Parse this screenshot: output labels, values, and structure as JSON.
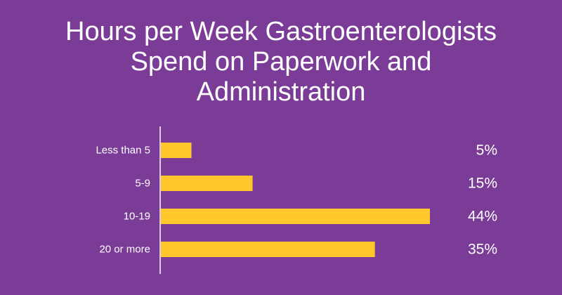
{
  "colors": {
    "background": "#7b3c97",
    "bar": "#ffc72c",
    "text": "#ffffff",
    "axis": "#ffffff"
  },
  "chart_data": {
    "type": "bar",
    "orientation": "horizontal",
    "title": "Hours per Week Gastroenterologists\nSpend on Paperwork and\nAdministration",
    "xlabel": "",
    "ylabel": "",
    "categories": [
      "Less than 5",
      "5-9",
      "10-19",
      "20 or more"
    ],
    "values": [
      5,
      15,
      44,
      35
    ],
    "value_labels": [
      "5%",
      "15%",
      "44%",
      "35%"
    ],
    "xlim": [
      0,
      44
    ],
    "grid": false,
    "legend": "none"
  }
}
